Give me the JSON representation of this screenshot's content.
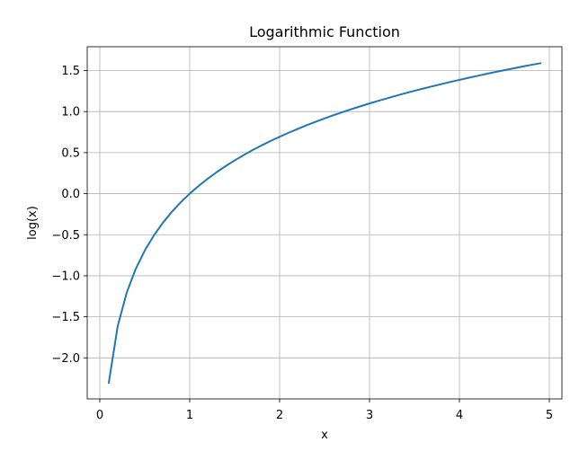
{
  "chart_data": {
    "type": "line",
    "title": "Logarithmic Function",
    "xlabel": "x",
    "ylabel": "log(x)",
    "xlim": [
      -0.14,
      5.14
    ],
    "ylim": [
      -2.5,
      1.79
    ],
    "xticks": [
      0,
      1,
      2,
      3,
      4,
      5
    ],
    "xtick_labels": [
      "0",
      "1",
      "2",
      "3",
      "4",
      "5"
    ],
    "yticks": [
      -2.0,
      -1.5,
      -1.0,
      -0.5,
      0.0,
      0.5,
      1.0,
      1.5
    ],
    "ytick_labels": [
      "−2.0",
      "−1.5",
      "−1.0",
      "−0.5",
      "0.0",
      "0.5",
      "1.0",
      "1.5"
    ],
    "grid": true,
    "series": [
      {
        "color": "#1f77b4",
        "x": [
          0.1,
          0.2,
          0.3,
          0.4,
          0.5,
          0.6,
          0.7,
          0.8,
          0.9,
          1.0,
          1.1,
          1.2,
          1.3,
          1.4,
          1.5,
          1.6,
          1.7,
          1.8,
          1.9,
          2.0,
          2.1,
          2.2,
          2.3,
          2.4,
          2.5,
          2.6,
          2.7,
          2.8,
          2.9,
          3.0,
          3.1,
          3.2,
          3.3,
          3.4,
          3.5,
          3.6,
          3.7,
          3.8,
          3.9,
          4.0,
          4.1,
          4.2,
          4.3,
          4.4,
          4.5,
          4.6,
          4.7,
          4.8,
          4.9
        ],
        "y": [
          -2.303,
          -1.609,
          -1.204,
          -0.916,
          -0.693,
          -0.511,
          -0.357,
          -0.223,
          -0.105,
          0.0,
          0.095,
          0.182,
          0.262,
          0.336,
          0.405,
          0.47,
          0.531,
          0.588,
          0.642,
          0.693,
          0.742,
          0.788,
          0.833,
          0.875,
          0.916,
          0.956,
          0.993,
          1.03,
          1.065,
          1.099,
          1.131,
          1.163,
          1.194,
          1.224,
          1.253,
          1.281,
          1.308,
          1.335,
          1.361,
          1.386,
          1.411,
          1.435,
          1.459,
          1.482,
          1.504,
          1.526,
          1.548,
          1.569,
          1.589
        ]
      }
    ]
  }
}
